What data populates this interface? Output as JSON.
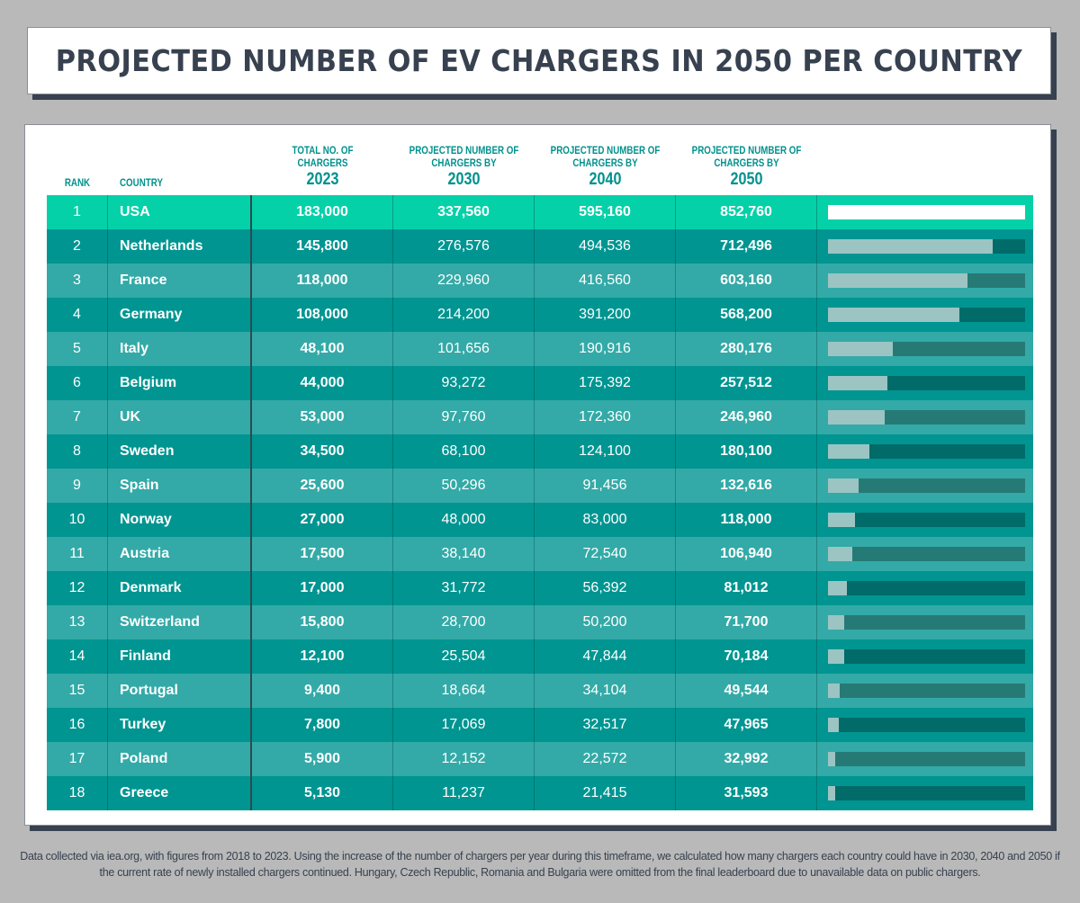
{
  "title": "PROJECTED NUMBER OF EV CHARGERS IN 2050 PER COUNTRY",
  "colors": {
    "background": "#b9b9b9",
    "dark": "#37414f",
    "accent": "#05d1a9",
    "row_even": "#009591",
    "row_odd": "#33aaa7",
    "bar_fill": "#9cc4c2",
    "header_text": "#00918d"
  },
  "headers": {
    "rank": "RANK",
    "country": "COUNTRY",
    "c2023": {
      "label": "TOTAL NO. OF CHARGERS",
      "year": "2023"
    },
    "c2030": {
      "label": "PROJECTED NUMBER OF CHARGERS BY",
      "year": "2030"
    },
    "c2040": {
      "label": "PROJECTED NUMBER OF CHARGERS BY",
      "year": "2040"
    },
    "c2050": {
      "label": "PROJECTED NUMBER OF CHARGERS BY",
      "year": "2050"
    }
  },
  "chart_data": {
    "type": "table",
    "title": "PROJECTED NUMBER OF EV CHARGERS IN 2050 PER COUNTRY",
    "bar_column": "2050 projection relative to maximum",
    "bar_max": 852760,
    "rows": [
      {
        "rank": "1",
        "country": "USA",
        "y2023": "183,000",
        "y2030": "337,560",
        "y2040": "595,160",
        "y2050": "852,760",
        "v2050": 852760
      },
      {
        "rank": "2",
        "country": "Netherlands",
        "y2023": "145,800",
        "y2030": "276,576",
        "y2040": "494,536",
        "y2050": "712,496",
        "v2050": 712496
      },
      {
        "rank": "3",
        "country": "France",
        "y2023": "118,000",
        "y2030": "229,960",
        "y2040": "416,560",
        "y2050": "603,160",
        "v2050": 603160
      },
      {
        "rank": "4",
        "country": "Germany",
        "y2023": "108,000",
        "y2030": "214,200",
        "y2040": "391,200",
        "y2050": "568,200",
        "v2050": 568200
      },
      {
        "rank": "5",
        "country": "Italy",
        "y2023": "48,100",
        "y2030": "101,656",
        "y2040": "190,916",
        "y2050": "280,176",
        "v2050": 280176
      },
      {
        "rank": "6",
        "country": "Belgium",
        "y2023": "44,000",
        "y2030": "93,272",
        "y2040": "175,392",
        "y2050": "257,512",
        "v2050": 257512
      },
      {
        "rank": "7",
        "country": "UK",
        "y2023": "53,000",
        "y2030": "97,760",
        "y2040": "172,360",
        "y2050": "246,960",
        "v2050": 246960
      },
      {
        "rank": "8",
        "country": "Sweden",
        "y2023": "34,500",
        "y2030": "68,100",
        "y2040": "124,100",
        "y2050": "180,100",
        "v2050": 180100
      },
      {
        "rank": "9",
        "country": "Spain",
        "y2023": "25,600",
        "y2030": "50,296",
        "y2040": "91,456",
        "y2050": "132,616",
        "v2050": 132616
      },
      {
        "rank": "10",
        "country": "Norway",
        "y2023": "27,000",
        "y2030": "48,000",
        "y2040": "83,000",
        "y2050": "118,000",
        "v2050": 118000
      },
      {
        "rank": "11",
        "country": "Austria",
        "y2023": "17,500",
        "y2030": "38,140",
        "y2040": "72,540",
        "y2050": "106,940",
        "v2050": 106940
      },
      {
        "rank": "12",
        "country": "Denmark",
        "y2023": "17,000",
        "y2030": "31,772",
        "y2040": "56,392",
        "y2050": "81,012",
        "v2050": 81012
      },
      {
        "rank": "13",
        "country": "Switzerland",
        "y2023": "15,800",
        "y2030": "28,700",
        "y2040": "50,200",
        "y2050": "71,700",
        "v2050": 71700
      },
      {
        "rank": "14",
        "country": "Finland",
        "y2023": "12,100",
        "y2030": "25,504",
        "y2040": "47,844",
        "y2050": "70,184",
        "v2050": 70184
      },
      {
        "rank": "15",
        "country": "Portugal",
        "y2023": "9,400",
        "y2030": "18,664",
        "y2040": "34,104",
        "y2050": "49,544",
        "v2050": 49544
      },
      {
        "rank": "16",
        "country": "Turkey",
        "y2023": "7,800",
        "y2030": "17,069",
        "y2040": "32,517",
        "y2050": "47,965",
        "v2050": 47965
      },
      {
        "rank": "17",
        "country": "Poland",
        "y2023": "5,900",
        "y2030": "12,152",
        "y2040": "22,572",
        "y2050": "32,992",
        "v2050": 32992
      },
      {
        "rank": "18",
        "country": "Greece",
        "y2023": "5,130",
        "y2030": "11,237",
        "y2040": "21,415",
        "y2050": "31,593",
        "v2050": 31593
      }
    ]
  },
  "footer": "Data collected via iea.org, with figures from 2018 to 2023. Using the increase of the number of chargers per year during this timeframe, we calculated how many chargers each country could have in 2030, 2040 and 2050 if the current rate of newly installed chargers continued. Hungary, Czech Republic, Romania and Bulgaria were omitted from the final leaderboard due to unavailable data on public chargers."
}
